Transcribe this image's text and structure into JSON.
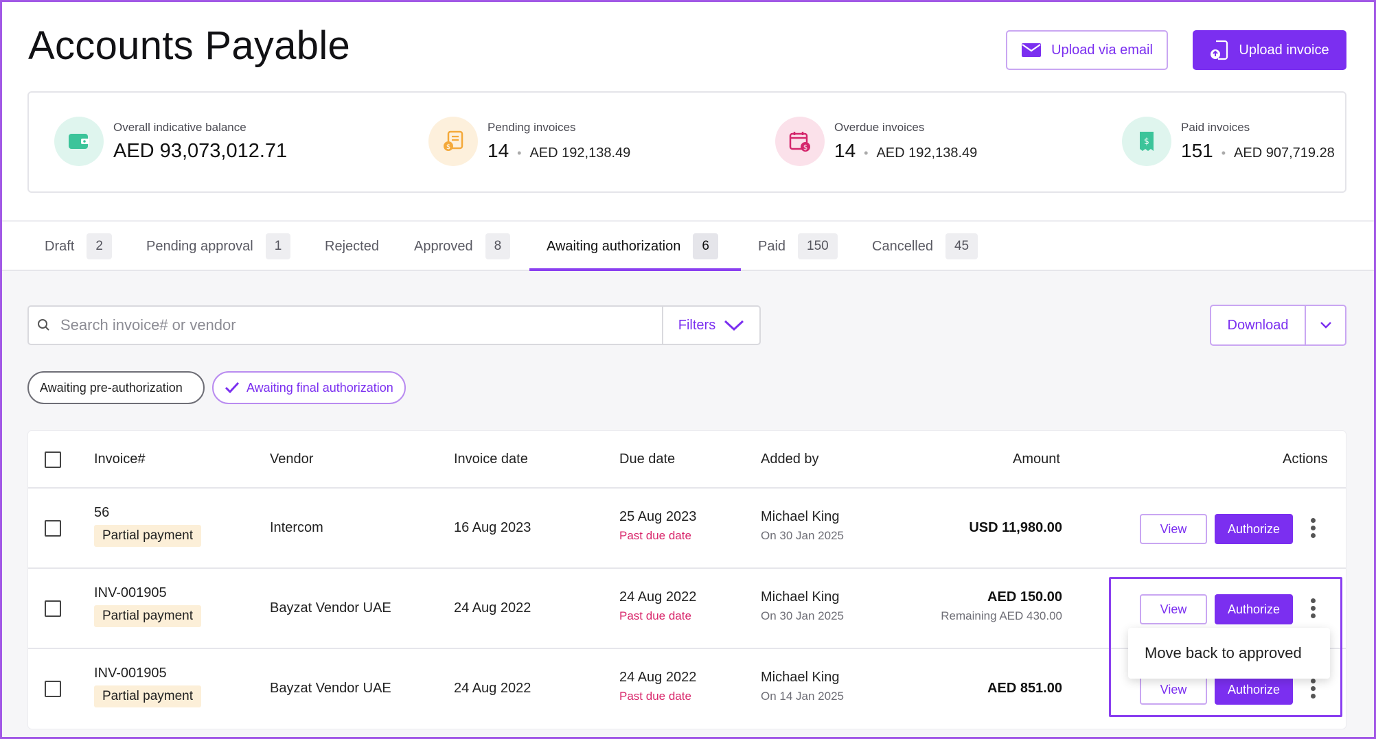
{
  "header": {
    "title": "Accounts Payable",
    "upload_email_label": "Upload via email",
    "upload_invoice_label": "Upload invoice"
  },
  "summary": [
    {
      "label": "Overall indicative balance",
      "value": "AED 93,073,012.71",
      "icon": "wallet-icon",
      "color": "#3cc49a",
      "bg": "#dff5ee"
    },
    {
      "label": "Pending invoices",
      "count": "14",
      "amount": "AED 192,138.49",
      "icon": "pending-invoice-icon",
      "color": "#f4a93a",
      "bg": "#fdf0dc"
    },
    {
      "label": "Overdue invoices",
      "count": "14",
      "amount": "AED 192,138.49",
      "icon": "calendar-overdue-icon",
      "color": "#d4266c",
      "bg": "#fbe1ea"
    },
    {
      "label": "Paid invoices",
      "count": "151",
      "amount": "AED 907,719.28",
      "icon": "receipt-paid-icon",
      "color": "#3cc49a",
      "bg": "#dff5ee"
    }
  ],
  "tabs": [
    {
      "label": "Draft",
      "count": "2"
    },
    {
      "label": "Pending approval",
      "count": "1"
    },
    {
      "label": "Rejected",
      "count": ""
    },
    {
      "label": "Approved",
      "count": "8"
    },
    {
      "label": "Awaiting authorization",
      "count": "6"
    },
    {
      "label": "Paid",
      "count": "150"
    },
    {
      "label": "Cancelled",
      "count": "45"
    }
  ],
  "toolbar": {
    "search_placeholder": "Search invoice# or vendor",
    "filters_label": "Filters",
    "download_label": "Download"
  },
  "chips": {
    "pre_auth": "Awaiting pre-authorization",
    "final_auth": "Awaiting final authorization"
  },
  "table": {
    "columns": {
      "invoice": "Invoice#",
      "vendor": "Vendor",
      "invoice_date": "Invoice date",
      "due_date": "Due date",
      "added_by": "Added by",
      "amount": "Amount",
      "actions": "Actions"
    },
    "rows": [
      {
        "invoice": "56",
        "badge": "Partial payment",
        "vendor": "Intercom",
        "invoice_date": "16 Aug 2023",
        "due_date": "25 Aug 2023",
        "due_status": "Past due date",
        "added_by": "Michael King",
        "added_on": "On 30 Jan 2025",
        "amount": "USD 11,980.00",
        "remaining": "",
        "view": "View",
        "authorize": "Authorize"
      },
      {
        "invoice": "INV-001905",
        "badge": "Partial payment",
        "vendor": "Bayzat Vendor UAE",
        "invoice_date": "24 Aug 2022",
        "due_date": "24 Aug 2022",
        "due_status": "Past due date",
        "added_by": "Michael King",
        "added_on": "On 30 Jan 2025",
        "amount": "AED 150.00",
        "remaining": "Remaining AED 430.00",
        "view": "View",
        "authorize": "Authorize"
      },
      {
        "invoice": "INV-001905",
        "badge": "Partial payment",
        "vendor": "Bayzat Vendor UAE",
        "invoice_date": "24 Aug 2022",
        "due_date": "24 Aug 2022",
        "due_status": "Past due date",
        "added_by": "Michael King",
        "added_on": "On 14 Jan 2025",
        "amount": "AED 851.00",
        "remaining": "",
        "view": "View",
        "authorize": "Authorize"
      }
    ]
  },
  "context_menu": {
    "item": "Move back to approved"
  },
  "colors": {
    "accent": "#7b2ff0",
    "past_due": "#d8256a",
    "badge_bg": "#fcefd8"
  }
}
